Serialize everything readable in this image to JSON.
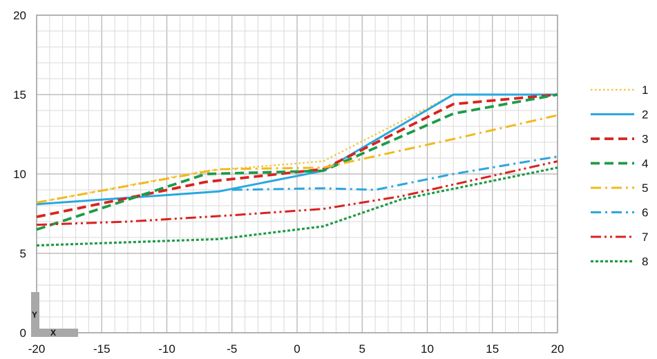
{
  "chart_data": {
    "type": "line",
    "title": "",
    "xlabel": "",
    "ylabel": "",
    "xlim": [
      -20,
      20
    ],
    "ylim": [
      0,
      20
    ],
    "x_ticks": [
      "-20",
      "-15",
      "-10",
      "-5",
      "0",
      "5",
      "10",
      "15",
      "20"
    ],
    "y_ticks": [
      "0",
      "5",
      "10",
      "15",
      "20"
    ],
    "grid": true,
    "legend_position": "right",
    "axis_icon": {
      "y_letter": "Y",
      "x_letter": "X"
    },
    "series": [
      {
        "name": "1",
        "color": "#f2c744",
        "dash": "dotted",
        "points": [
          [
            -20,
            8.2
          ],
          [
            -7,
            10.2
          ],
          [
            2,
            10.8
          ],
          [
            12,
            15
          ],
          [
            20,
            15
          ]
        ]
      },
      {
        "name": "2",
        "color": "#2aa7df",
        "dash": "solid",
        "points": [
          [
            -20,
            8.1
          ],
          [
            -6,
            8.9
          ],
          [
            2,
            10.2
          ],
          [
            12,
            15
          ],
          [
            20,
            15
          ]
        ]
      },
      {
        "name": "3",
        "color": "#d8231f",
        "dash": "dashed",
        "points": [
          [
            -20,
            7.3
          ],
          [
            -7,
            9.5
          ],
          [
            2,
            10.3
          ],
          [
            12,
            14.4
          ],
          [
            20,
            15
          ]
        ]
      },
      {
        "name": "4",
        "color": "#1e9a48",
        "dash": "dashed",
        "points": [
          [
            -20,
            6.5
          ],
          [
            -7,
            10.0
          ],
          [
            2,
            10.2
          ],
          [
            12,
            13.8
          ],
          [
            20,
            15
          ]
        ]
      },
      {
        "name": "5",
        "color": "#f2b91c",
        "dash": "dash-dot",
        "points": [
          [
            -20,
            8.2
          ],
          [
            -6,
            10.3
          ],
          [
            2,
            10.4
          ],
          [
            12,
            12.2
          ],
          [
            20,
            13.7
          ]
        ]
      },
      {
        "name": "6",
        "color": "#2aa7df",
        "dash": "dash-dot",
        "points": [
          [
            -5,
            9.0
          ],
          [
            2,
            9.1
          ],
          [
            6,
            9.0
          ],
          [
            12,
            10.0
          ],
          [
            20,
            11.1
          ]
        ]
      },
      {
        "name": "7",
        "color": "#d8231f",
        "dash": "dash-dot-dot",
        "points": [
          [
            -20,
            6.8
          ],
          [
            -13,
            7.0
          ],
          [
            -5,
            7.4
          ],
          [
            2,
            7.8
          ],
          [
            8,
            8.6
          ],
          [
            20,
            10.8
          ]
        ]
      },
      {
        "name": "8",
        "color": "#1e9a48",
        "dash": "dotted-dense",
        "points": [
          [
            -20,
            5.5
          ],
          [
            -6,
            5.9
          ],
          [
            2,
            6.7
          ],
          [
            8,
            8.4
          ],
          [
            20,
            10.4
          ]
        ]
      }
    ]
  }
}
